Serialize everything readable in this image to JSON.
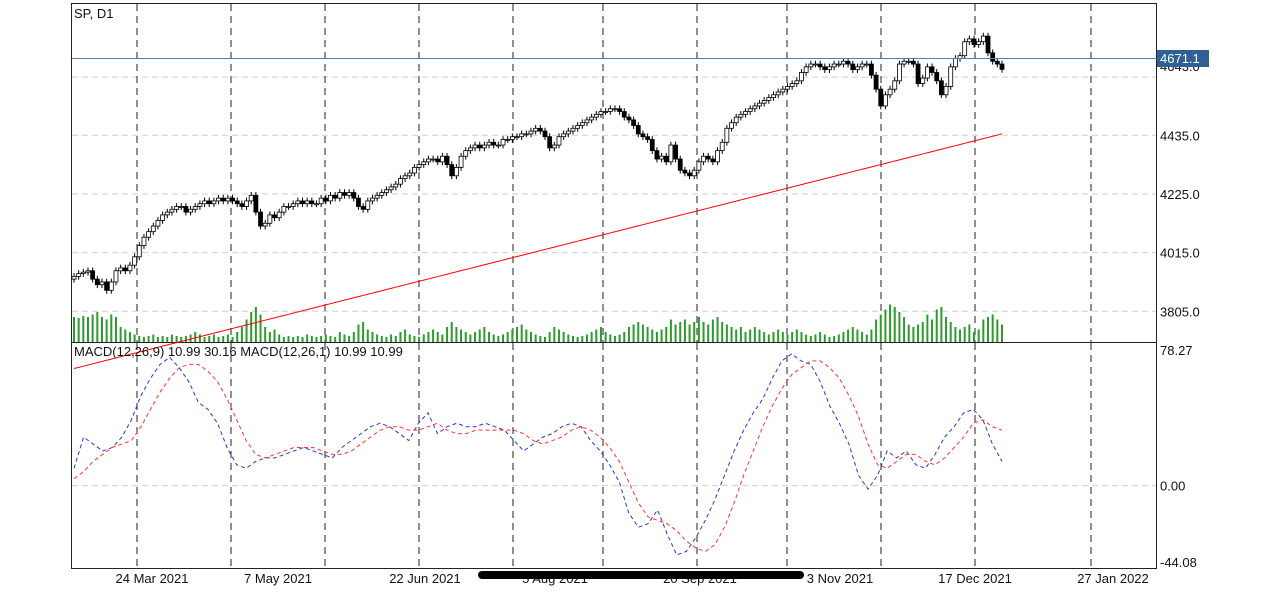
{
  "main_panel": {
    "title": "SP, D1",
    "current_price_label": "4671.1",
    "hidden_price_label": "4643.0"
  },
  "sub_panel": {
    "title": "MACD(12,26,9) 10.99 30.16 MACD(12,26,1) 10.99 10.99"
  },
  "colors": {
    "candle": "#000000",
    "ma": "#ff0000",
    "volume": "#2e9a2e",
    "macd_main": "#3333cc",
    "macd_signal": "#ff3333",
    "price_line": "#5a7fa6",
    "price_badge": "#2f5f95"
  },
  "chart_data": [
    {
      "type": "candlestick",
      "ohlc_series": "SP D1",
      "price_axis_ticks": [
        "3805.0",
        "4015.0",
        "4225.0",
        "4435.0",
        "4643.0"
      ],
      "price_range": [
        3695,
        4905
      ],
      "date_ticks": [
        "24 Mar 2021",
        "7 May 2021",
        "22 Jun 2021",
        "5 Aug 2021",
        "20 Sep 2021",
        "3 Nov 2021",
        "17 Dec 2021",
        "27 Jan 2022"
      ],
      "closes": [
        3930,
        3940,
        3945,
        3950,
        3920,
        3900,
        3910,
        3880,
        3910,
        3950,
        3960,
        3950,
        3970,
        4000,
        4040,
        4070,
        4090,
        4110,
        4130,
        4150,
        4160,
        4170,
        4180,
        4180,
        4160,
        4170,
        4180,
        4190,
        4200,
        4190,
        4200,
        4210,
        4200,
        4210,
        4200,
        4190,
        4180,
        4200,
        4220,
        4160,
        4110,
        4120,
        4150,
        4140,
        4160,
        4180,
        4180,
        4190,
        4200,
        4190,
        4200,
        4190,
        4190,
        4210,
        4200,
        4220,
        4210,
        4230,
        4220,
        4230,
        4210,
        4180,
        4170,
        4200,
        4210,
        4220,
        4230,
        4240,
        4250,
        4260,
        4280,
        4290,
        4300,
        4320,
        4330,
        4340,
        4350,
        4350,
        4340,
        4360,
        4330,
        4290,
        4320,
        4360,
        4380,
        4390,
        4400,
        4390,
        4400,
        4410,
        4400,
        4400,
        4420,
        4420,
        4430,
        4430,
        4440,
        4440,
        4450,
        4460,
        4450,
        4430,
        4390,
        4400,
        4430,
        4440,
        4450,
        4460,
        4470,
        4480,
        4490,
        4500,
        4510,
        4520,
        4520,
        4530,
        4530,
        4520,
        4500,
        4490,
        4470,
        4440,
        4430,
        4420,
        4380,
        4350,
        4360,
        4340,
        4400,
        4350,
        4310,
        4300,
        4290,
        4310,
        4340,
        4360,
        4350,
        4340,
        4380,
        4410,
        4460,
        4480,
        4500,
        4510,
        4520,
        4530,
        4540,
        4550,
        4560,
        4570,
        4580,
        4590,
        4600,
        4610,
        4620,
        4630,
        4660,
        4680,
        4690,
        4690,
        4680,
        4670,
        4680,
        4690,
        4690,
        4700,
        4690,
        4670,
        4680,
        4690,
        4690,
        4650,
        4600,
        4540,
        4580,
        4600,
        4630,
        4690,
        4700,
        4700,
        4690,
        4620,
        4640,
        4680,
        4660,
        4630,
        4580,
        4610,
        4680,
        4710,
        4720,
        4770,
        4780,
        4760,
        4770,
        4790,
        4730,
        4700,
        4690,
        4671
      ],
      "volume_levels": [
        0.5,
        0.48,
        0.52,
        0.5,
        0.55,
        0.6,
        0.5,
        0.45,
        0.55,
        0.5,
        0.3,
        0.25,
        0.2,
        0.15,
        0.12,
        0.1,
        0.12,
        0.15,
        0.1,
        0.12,
        0.1,
        0.15,
        0.12,
        0.1,
        0.12,
        0.15,
        0.2,
        0.15,
        0.1,
        0.12,
        0.15,
        0.1,
        0.12,
        0.15,
        0.1,
        0.2,
        0.3,
        0.45,
        0.6,
        0.7,
        0.55,
        0.3,
        0.2,
        0.25,
        0.15,
        0.1,
        0.12,
        0.1,
        0.12,
        0.1,
        0.15,
        0.12,
        0.1,
        0.12,
        0.15,
        0.12,
        0.1,
        0.2,
        0.15,
        0.12,
        0.2,
        0.35,
        0.4,
        0.25,
        0.2,
        0.15,
        0.12,
        0.1,
        0.15,
        0.12,
        0.2,
        0.25,
        0.15,
        0.12,
        0.1,
        0.15,
        0.2,
        0.25,
        0.2,
        0.15,
        0.3,
        0.4,
        0.3,
        0.25,
        0.2,
        0.15,
        0.2,
        0.25,
        0.3,
        0.2,
        0.15,
        0.12,
        0.15,
        0.2,
        0.25,
        0.3,
        0.35,
        0.25,
        0.2,
        0.15,
        0.12,
        0.1,
        0.2,
        0.3,
        0.25,
        0.2,
        0.15,
        0.12,
        0.1,
        0.12,
        0.15,
        0.2,
        0.25,
        0.3,
        0.2,
        0.15,
        0.12,
        0.15,
        0.2,
        0.3,
        0.35,
        0.4,
        0.35,
        0.3,
        0.25,
        0.2,
        0.25,
        0.3,
        0.45,
        0.35,
        0.4,
        0.45,
        0.35,
        0.4,
        0.5,
        0.4,
        0.35,
        0.45,
        0.5,
        0.4,
        0.35,
        0.3,
        0.25,
        0.3,
        0.2,
        0.25,
        0.3,
        0.25,
        0.2,
        0.15,
        0.2,
        0.25,
        0.2,
        0.15,
        0.2,
        0.25,
        0.2,
        0.15,
        0.12,
        0.15,
        0.2,
        0.15,
        0.1,
        0.12,
        0.15,
        0.2,
        0.25,
        0.3,
        0.25,
        0.2,
        0.15,
        0.25,
        0.45,
        0.55,
        0.65,
        0.75,
        0.7,
        0.6,
        0.5,
        0.35,
        0.3,
        0.35,
        0.4,
        0.55,
        0.45,
        0.65,
        0.7,
        0.5,
        0.4,
        0.3,
        0.25,
        0.3,
        0.35,
        0.2,
        0.25,
        0.45,
        0.5,
        0.55,
        0.45,
        0.35
      ]
    },
    {
      "type": "line",
      "title": "MACD(12,26,9) 10.99 30.16 MACD(12,26,1) 10.99 10.99",
      "ylim": [
        -44.08,
        78.27
      ],
      "y_ticks": [
        "78.27",
        "0.00",
        "-44.08"
      ],
      "main": [
        10,
        28,
        24,
        20,
        22,
        28,
        38,
        52,
        62,
        70,
        74,
        68,
        60,
        48,
        44,
        36,
        22,
        12,
        10,
        14,
        16,
        16,
        18,
        20,
        22,
        20,
        18,
        16,
        22,
        26,
        30,
        34,
        36,
        34,
        30,
        26,
        36,
        42,
        30,
        34,
        36,
        34,
        34,
        36,
        34,
        32,
        26,
        20,
        24,
        28,
        30,
        34,
        36,
        34,
        26,
        20,
        12,
        2,
        -16,
        -24,
        -22,
        -14,
        -28,
        -40,
        -38,
        -30,
        -20,
        -8,
        6,
        20,
        32,
        42,
        50,
        62,
        72,
        76,
        72,
        70,
        60,
        46,
        36,
        24,
        6,
        -2,
        6,
        20,
        16,
        20,
        12,
        10,
        18,
        28,
        34,
        42,
        44,
        38,
        24,
        14
      ],
      "signal": [
        4,
        8,
        14,
        18,
        22,
        24,
        26,
        34,
        44,
        54,
        62,
        68,
        70,
        70,
        66,
        60,
        50,
        38,
        26,
        18,
        16,
        18,
        20,
        22,
        22,
        22,
        20,
        18,
        18,
        20,
        24,
        28,
        32,
        34,
        34,
        32,
        32,
        34,
        36,
        32,
        30,
        30,
        32,
        32,
        32,
        32,
        32,
        30,
        26,
        24,
        26,
        28,
        32,
        34,
        32,
        28,
        22,
        14,
        2,
        -10,
        -18,
        -20,
        -22,
        -26,
        -32,
        -36,
        -38,
        -34,
        -24,
        -10,
        6,
        20,
        34,
        46,
        56,
        64,
        68,
        72,
        72,
        68,
        62,
        52,
        40,
        24,
        12,
        10,
        14,
        18,
        18,
        14,
        12,
        16,
        22,
        28,
        36,
        38,
        34,
        32
      ]
    }
  ]
}
